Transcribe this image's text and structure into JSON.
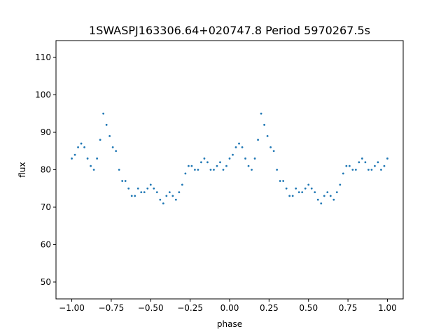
{
  "chart_data": {
    "type": "scatter",
    "title": "1SWASPJ163306.64+020747.8 Period 5970267.5s",
    "xlabel": "phase",
    "ylabel": "flux",
    "xlim": [
      -1.1,
      1.1
    ],
    "ylim": [
      45.5,
      114.5
    ],
    "x_ticks": [
      -1.0,
      -0.75,
      -0.5,
      -0.25,
      0.0,
      0.25,
      0.5,
      0.75,
      1.0
    ],
    "x_tick_labels": [
      "−1.00",
      "−0.75",
      "−0.50",
      "−0.25",
      "0.00",
      "0.25",
      "0.50",
      "0.75",
      "1.00"
    ],
    "y_ticks": [
      50,
      60,
      70,
      80,
      90,
      100,
      110
    ],
    "y_tick_labels": [
      "50",
      "60",
      "70",
      "80",
      "90",
      "100",
      "110"
    ],
    "grid": false,
    "legend": false,
    "point_color": "#1f77b4",
    "series": [
      {
        "x": [
          -1.0,
          -0.98,
          -0.96,
          -0.94,
          -0.92,
          -0.9,
          -0.88,
          -0.86,
          -0.84,
          -0.82,
          -0.8,
          -0.78,
          -0.76,
          -0.74,
          -0.72,
          -0.7,
          -0.68,
          -0.66,
          -0.64,
          -0.62,
          -0.6,
          -0.58,
          -0.56,
          -0.54,
          -0.52,
          -0.5,
          -0.48,
          -0.46,
          -0.44,
          -0.42,
          -0.4,
          -0.38,
          -0.36,
          -0.34,
          -0.32,
          -0.3,
          -0.28,
          -0.26,
          -0.24,
          -0.22,
          -0.2,
          -0.18,
          -0.16,
          -0.14,
          -0.12,
          -0.1,
          -0.08,
          -0.06,
          -0.04,
          -0.02,
          0.0,
          0.02,
          0.04,
          0.06,
          0.08,
          0.1,
          0.12,
          0.14,
          0.16,
          0.18,
          0.2,
          0.22,
          0.24,
          0.26,
          0.28,
          0.3,
          0.32,
          0.34,
          0.36,
          0.38,
          0.4,
          0.42,
          0.44,
          0.46,
          0.48,
          0.5,
          0.52,
          0.54,
          0.56,
          0.58,
          0.6,
          0.62,
          0.64,
          0.66,
          0.68,
          0.7,
          0.72,
          0.74,
          0.76,
          0.78,
          0.8,
          0.82,
          0.84,
          0.86,
          0.88,
          0.9,
          0.92,
          0.94,
          0.96,
          0.98,
          1.0
        ],
        "y": [
          83.0,
          84.0,
          86.0,
          87.0,
          86.0,
          83.0,
          81.0,
          80.0,
          83.0,
          88.0,
          95.0,
          92.0,
          89.0,
          86.0,
          85.0,
          80.0,
          77.0,
          77.0,
          75.0,
          73.0,
          73.0,
          75.0,
          74.0,
          74.0,
          75.0,
          76.0,
          75.0,
          74.0,
          72.0,
          71.0,
          73.0,
          74.0,
          73.0,
          72.0,
          74.0,
          76.0,
          79.0,
          81.0,
          81.0,
          80.0,
          80.0,
          82.0,
          83.0,
          82.0,
          80.0,
          80.0,
          81.0,
          82.0,
          80.0,
          81.0,
          83.0,
          84.0,
          86.0,
          87.0,
          86.0,
          83.0,
          81.0,
          80.0,
          83.0,
          88.0,
          95.0,
          92.0,
          89.0,
          86.0,
          85.0,
          80.0,
          77.0,
          77.0,
          75.0,
          73.0,
          73.0,
          75.0,
          74.0,
          74.0,
          75.0,
          76.0,
          75.0,
          74.0,
          72.0,
          71.0,
          73.0,
          74.0,
          73.0,
          72.0,
          74.0,
          76.0,
          79.0,
          81.0,
          81.0,
          80.0,
          80.0,
          82.0,
          83.0,
          82.0,
          80.0,
          80.0,
          81.0,
          82.0,
          80.0,
          81.0,
          83.0
        ]
      }
    ]
  }
}
